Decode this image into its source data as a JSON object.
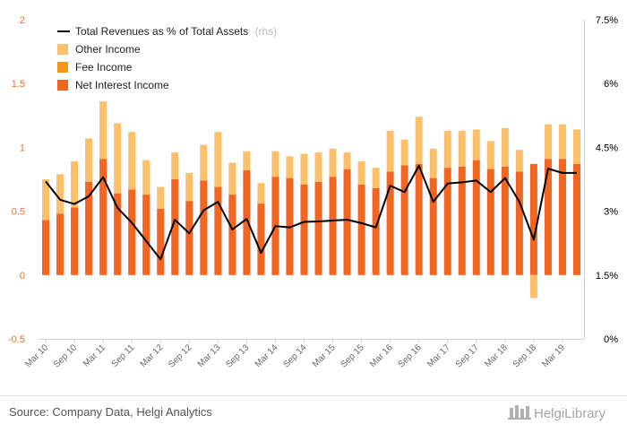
{
  "chart_data": {
    "type": "bar",
    "stacked": true,
    "categories": [
      "Mar 10",
      "Jun 10",
      "Sep 10",
      "Dec 10",
      "Mar 11",
      "Jun 11",
      "Sep 11",
      "Dec 11",
      "Mar 12",
      "Jun 12",
      "Sep 12",
      "Dec 12",
      "Mar 13",
      "Jun 13",
      "Sep 13",
      "Dec 13",
      "Mar 14",
      "Jun 14",
      "Sep 14",
      "Dec 14",
      "Mar 15",
      "Jun 15",
      "Sep 15",
      "Dec 15",
      "Mar 16",
      "Jun 16",
      "Sep 16",
      "Dec 16",
      "Mar 17",
      "Jun 17",
      "Sep 17",
      "Dec 17",
      "Mar 18",
      "Jun 18",
      "Sep 18",
      "Dec 18",
      "Mar 19",
      "Jun 19"
    ],
    "x_tick_labels": [
      "Mar 10",
      "Sep 10",
      "Mar 11",
      "Sep 11",
      "Mar 12",
      "Sep 12",
      "Mar 13",
      "Sep 13",
      "Mar 14",
      "Sep 14",
      "Mar 15",
      "Sep 15",
      "Mar 16",
      "Sep 16",
      "Mar 17",
      "Sep 17",
      "Mar 18",
      "Sep 18",
      "Mar 19"
    ],
    "series": [
      {
        "name": "Net Interest Income",
        "axis": "left",
        "color": "#f26522",
        "values": [
          0.43,
          0.48,
          0.53,
          0.73,
          0.91,
          0.64,
          0.67,
          0.63,
          0.52,
          0.75,
          0.58,
          0.74,
          0.69,
          0.63,
          0.82,
          0.56,
          0.77,
          0.76,
          0.71,
          0.73,
          0.77,
          0.83,
          0.71,
          0.68,
          0.81,
          0.86,
          0.87,
          0.76,
          0.84,
          0.85,
          0.9,
          0.83,
          0.85,
          0.81,
          0.87,
          0.91,
          0.91,
          0.87
        ]
      },
      {
        "name": "Fee Income",
        "axis": "left",
        "color": "#f7941d",
        "values": [
          0,
          0,
          0,
          0,
          0,
          0,
          0,
          0,
          0,
          0,
          0,
          0,
          0,
          0,
          0,
          0,
          0,
          0,
          0,
          0,
          0,
          0,
          0,
          0,
          0,
          0,
          0,
          0,
          0,
          0,
          0,
          0,
          0,
          0,
          0,
          0,
          0,
          0
        ]
      },
      {
        "name": "Other Income",
        "axis": "left",
        "color": "#fbbf6e",
        "values": [
          0.32,
          0.31,
          0.36,
          0.34,
          0.45,
          0.55,
          0.45,
          0.27,
          0.17,
          0.21,
          0.22,
          0.28,
          0.43,
          0.25,
          0.15,
          0.16,
          0.2,
          0.17,
          0.24,
          0.23,
          0.22,
          0.13,
          0.18,
          0.16,
          0.32,
          0.2,
          0.37,
          0.23,
          0.29,
          0.28,
          0.24,
          0.22,
          0.3,
          0.17,
          -0.18,
          0.27,
          0.27,
          0.27
        ]
      },
      {
        "name": "Total Revenues as % of Total Assets",
        "axis": "right",
        "type": "line",
        "color": "#000000",
        "values": [
          3.7,
          3.27,
          3.17,
          3.35,
          3.8,
          3.08,
          2.73,
          2.3,
          1.87,
          2.8,
          2.48,
          3.02,
          3.22,
          2.57,
          2.82,
          2.02,
          2.65,
          2.62,
          2.75,
          2.76,
          2.78,
          2.8,
          2.72,
          2.62,
          3.6,
          3.45,
          4.07,
          3.22,
          3.65,
          3.68,
          3.72,
          3.45,
          3.78,
          3.22,
          2.33,
          4.0,
          3.9,
          3.9
        ]
      }
    ],
    "left_axis": {
      "ylim": [
        -0.5,
        2
      ],
      "ticks": [
        "-0.5",
        "0",
        "0.5",
        "1",
        "1.5",
        "2"
      ],
      "tick_values": [
        -0.5,
        0,
        0.5,
        1,
        1.5,
        2
      ]
    },
    "right_axis": {
      "ylim": [
        0,
        7.5
      ],
      "ticks": [
        "0%",
        "1.5%",
        "3%",
        "4.5%",
        "6%",
        "7.5%"
      ],
      "tick_values": [
        0,
        1.5,
        3,
        4.5,
        6,
        7.5
      ]
    },
    "grid": false,
    "legend": {
      "placement": "top-left",
      "note": "(rhs)"
    }
  },
  "footer": {
    "source": "Source: Company Data, Helgi Analytics",
    "brand": "HelgiLibrary"
  }
}
